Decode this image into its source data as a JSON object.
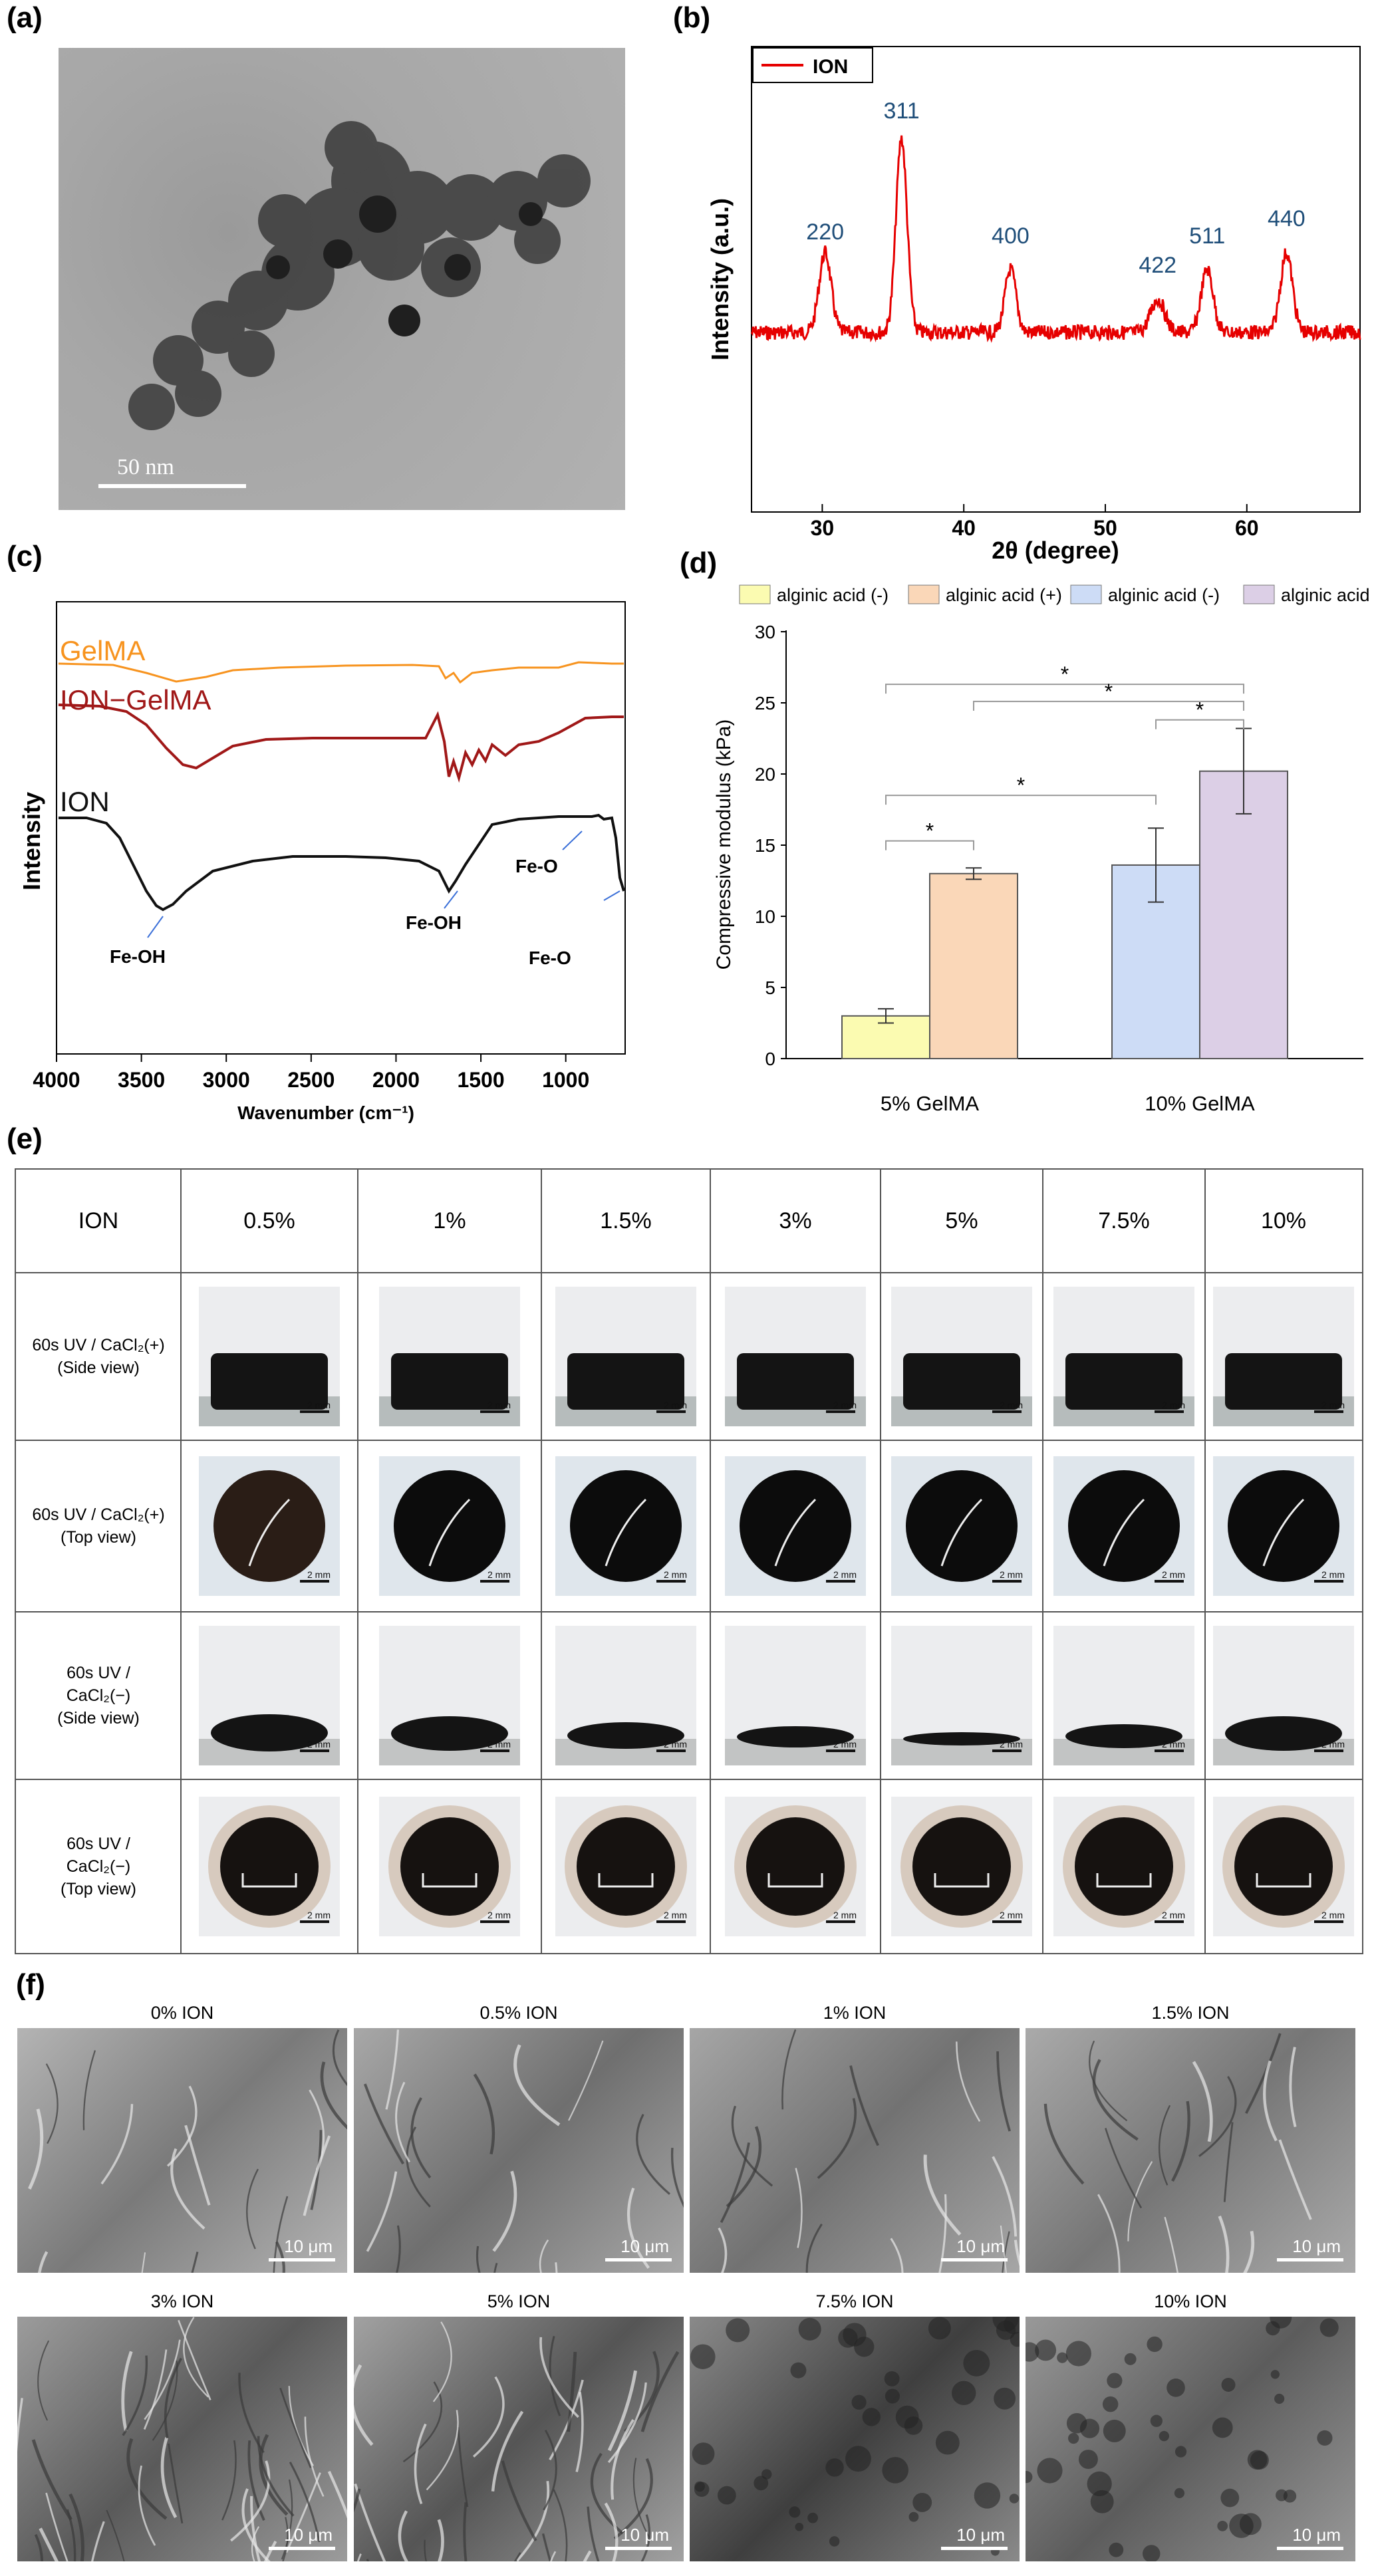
{
  "panels": {
    "a": {
      "label": "(a)",
      "scale_bar": "50 nm"
    },
    "b": {
      "label": "(b)",
      "legend": "ION",
      "xlabel": "2θ (degree)",
      "ylabel": "Intensity (a.u.)",
      "xticks": [
        "30",
        "40",
        "50",
        "60"
      ],
      "peaks": [
        "220",
        "311",
        "400",
        "422",
        "511",
        "440"
      ]
    },
    "c": {
      "label": "(c)",
      "xlabel": "Wavenumber (cm⁻¹)",
      "ylabel": "Intensity",
      "xticks": [
        "4000",
        "3500",
        "3000",
        "2500",
        "2000",
        "1500",
        "1000"
      ],
      "series": [
        "GelMA",
        "ION−GelMA",
        "ION"
      ],
      "annotations": [
        "Fe-OH",
        "Fe-OH",
        "Fe-O",
        "Fe-O"
      ]
    },
    "d": {
      "label": "(d)",
      "star": "*",
      "legend": [
        "alginic acid (-)",
        "alginic acid (+)",
        "alginic acid (-)",
        "alginic acid (+)"
      ]
    },
    "e": {
      "label": "(e)",
      "header": [
        "ION",
        "0.5%",
        "1%",
        "1.5%",
        "3%",
        "5%",
        "7.5%",
        "10%"
      ],
      "rows": [
        {
          "line1": "60s UV / CaCl₂(+)",
          "line2": "(Side view)",
          "line3": ""
        },
        {
          "line1": "60s UV / CaCl₂(+)",
          "line2": "(Top view)",
          "line3": ""
        },
        {
          "line1": "60s UV /",
          "line2": "CaCl₂(−)",
          "line3": "(Side view)"
        },
        {
          "line1": "60s UV /",
          "line2": "CaCl₂(−)",
          "line3": "(Top view)"
        }
      ],
      "scale_label": "2 mm"
    },
    "f": {
      "label": "(f)",
      "images": [
        "0%  ION",
        "0.5%  ION",
        "1%  ION",
        "1.5%  ION",
        "3%  ION",
        "5%  ION",
        "7.5%  ION",
        "10%  ION"
      ],
      "scale_label": "10 μm"
    }
  },
  "chart_data": [
    {
      "type": "bar",
      "title": "",
      "xlabel": "",
      "ylabel": "Compressive modulus (kPa)",
      "ylim": [
        0,
        30
      ],
      "yticks": [
        0,
        5,
        10,
        15,
        20,
        25,
        30
      ],
      "categories": [
        "5% GelMA",
        "10% GelMA"
      ],
      "series": [
        {
          "name": "alginic acid (-)",
          "group": "5% GelMA",
          "value": 3.0,
          "error": 0.5,
          "color": "#fbfbb1"
        },
        {
          "name": "alginic acid (+)",
          "group": "5% GelMA",
          "value": 13.0,
          "error": 0.4,
          "color": "#fad7b8"
        },
        {
          "name": "alginic acid (-)",
          "group": "10% GelMA",
          "value": 13.6,
          "error": 2.6,
          "color": "#cddcf6"
        },
        {
          "name": "alginic acid (+)",
          "group": "10% GelMA",
          "value": 20.2,
          "error": 3.0,
          "color": "#dccfe6"
        }
      ],
      "significance": [
        {
          "from": 0,
          "to": 1,
          "y": 15.3,
          "label": "*"
        },
        {
          "from": 0,
          "to": 2,
          "y": 18.5,
          "label": "*"
        },
        {
          "from": 2,
          "to": 3,
          "y": 23.8,
          "label": "*"
        },
        {
          "from": 1,
          "to": 3,
          "y": 25.1,
          "label": "*"
        },
        {
          "from": 0,
          "to": 3,
          "y": 26.3,
          "label": "*"
        }
      ]
    },
    {
      "type": "line",
      "title": "",
      "xlabel": "2θ (degree)",
      "ylabel": "Intensity (a.u.)",
      "xlim": [
        25,
        68
      ],
      "series": [
        {
          "name": "ION",
          "color": "#e60000"
        }
      ],
      "peaks": [
        {
          "x": 30.2,
          "label": "220"
        },
        {
          "x": 35.6,
          "label": "311"
        },
        {
          "x": 43.3,
          "label": "400"
        },
        {
          "x": 53.7,
          "label": "422"
        },
        {
          "x": 57.2,
          "label": "511"
        },
        {
          "x": 62.8,
          "label": "440"
        }
      ]
    },
    {
      "type": "line",
      "title": "",
      "xlabel": "Wavenumber (cm⁻¹)",
      "ylabel": "Intensity",
      "xlim": [
        4000,
        650
      ],
      "series": [
        {
          "name": "GelMA",
          "color": "#f7931e"
        },
        {
          "name": "ION−GelMA",
          "color": "#a01818"
        },
        {
          "name": "ION",
          "color": "#111111"
        }
      ]
    }
  ]
}
